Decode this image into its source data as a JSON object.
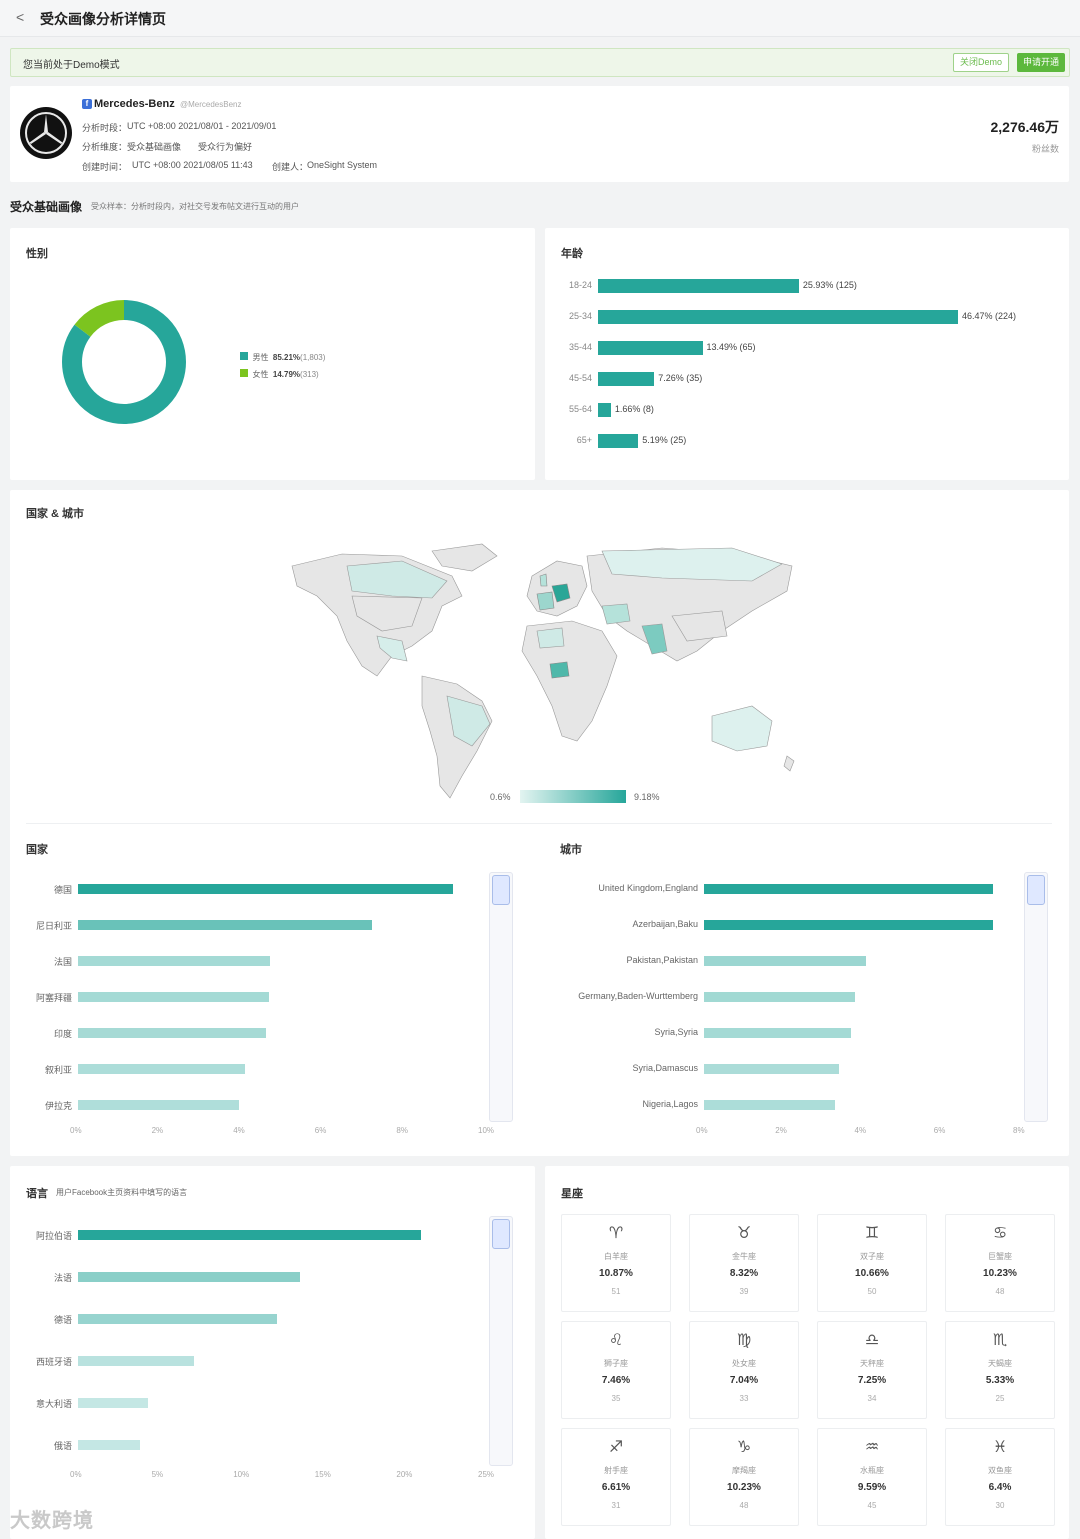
{
  "header": {
    "back_glyph": "<",
    "title": "受众画像分析详情页"
  },
  "demo": {
    "text": "您当前处于Demo模式",
    "close_label": "关闭Demo",
    "apply_label": "申请开通"
  },
  "profile": {
    "platform_icon": "facebook-icon",
    "name": "Mercedes-Benz",
    "handle": "@MercedesBenz",
    "period_label": "分析时段：",
    "period_value": "UTC +08:00 2021/08/01 - 2021/09/01",
    "dimension_label": "分析维度：",
    "dimension_1": "受众基础画像",
    "dimension_2": "受众行为偏好",
    "created_label": "创建时间：",
    "created_value": "UTC +08:00 2021/08/05 11:43",
    "creator_label": "创建人：",
    "creator_value": "OneSight System",
    "fans_value": "2,276.46万",
    "fans_label": "粉丝数"
  },
  "section": {
    "title": "受众基础画像",
    "subtitle": "受众样本：分析时段内，对社交号发布帖文进行互动的用户"
  },
  "gender": {
    "title": "性别",
    "colors": {
      "male": "#26a69a",
      "female": "#7cc41f"
    },
    "chart_data": {
      "type": "pie",
      "series": [
        {
          "name": "男性",
          "percent": 85.21,
          "count": 1803,
          "pct_text": "85.21%",
          "cnt_text": "(1,803)"
        },
        {
          "name": "女性",
          "percent": 14.79,
          "count": 313,
          "pct_text": "14.79%",
          "cnt_text": "(313)"
        }
      ]
    }
  },
  "age": {
    "title": "年龄",
    "bar_color": "#26a69a",
    "chart_data": {
      "type": "bar",
      "categories": [
        "18-24",
        "25-34",
        "35-44",
        "45-54",
        "55-64",
        "65+"
      ],
      "values": [
        25.93,
        46.47,
        13.49,
        7.26,
        1.66,
        5.19
      ],
      "labels": [
        "25.93% (125)",
        "46.47% (224)",
        "13.49% (65)",
        "7.26% (35)",
        "1.66% (8)",
        "5.19% (25)"
      ]
    }
  },
  "map": {
    "title": "国家 & 城市",
    "legend_min": "0.6%",
    "legend_max": "9.18%"
  },
  "countries": {
    "title": "国家",
    "chart_data": {
      "type": "bar",
      "categories": [
        "德国",
        "尼日利亚",
        "法国",
        "阿塞拜疆",
        "印度",
        "叙利亚",
        "伊拉克"
      ],
      "values": [
        9.2,
        7.2,
        4.7,
        4.68,
        4.6,
        4.1,
        3.95
      ],
      "xlim": [
        0,
        10
      ],
      "ticks": [
        "0%",
        "2%",
        "4%",
        "6%",
        "8%",
        "10%"
      ]
    }
  },
  "cities": {
    "title": "城市",
    "chart_data": {
      "type": "bar",
      "categories": [
        "United Kingdom,England",
        "Azerbaijan,Baku",
        "Pakistan,Pakistan",
        "Germany,Baden-Wurttemberg",
        "Syria,Syria",
        "Syria,Damascus",
        "Nigeria,Lagos"
      ],
      "values": [
        7.3,
        7.3,
        4.1,
        3.8,
        3.7,
        3.4,
        3.3
      ],
      "xlim": [
        0,
        8
      ],
      "ticks": [
        "0%",
        "2%",
        "4%",
        "6%",
        "8%"
      ]
    }
  },
  "language": {
    "title": "语言",
    "subtitle": "用户Facebook主页资料中填写的语言",
    "chart_data": {
      "type": "bar",
      "categories": [
        "阿拉伯语",
        "法语",
        "德语",
        "西班牙语",
        "意大利语",
        "俄语"
      ],
      "values": [
        21,
        13.6,
        12.2,
        7.1,
        4.3,
        3.8
      ],
      "xlim": [
        0,
        25
      ],
      "ticks": [
        "0%",
        "5%",
        "10%",
        "15%",
        "20%",
        "25%"
      ]
    }
  },
  "zodiac": {
    "title": "星座",
    "items": [
      {
        "icon": "♈",
        "name": "白羊座",
        "pct": "10.87%",
        "count": "51"
      },
      {
        "icon": "♉",
        "name": "金牛座",
        "pct": "8.32%",
        "count": "39"
      },
      {
        "icon": "♊",
        "name": "双子座",
        "pct": "10.66%",
        "count": "50"
      },
      {
        "icon": "♋",
        "name": "巨蟹座",
        "pct": "10.23%",
        "count": "48"
      },
      {
        "icon": "♌",
        "name": "狮子座",
        "pct": "7.46%",
        "count": "35"
      },
      {
        "icon": "♍",
        "name": "处女座",
        "pct": "7.04%",
        "count": "33"
      },
      {
        "icon": "♎",
        "name": "天秤座",
        "pct": "7.25%",
        "count": "34"
      },
      {
        "icon": "♏",
        "name": "天蝎座",
        "pct": "5.33%",
        "count": "25"
      },
      {
        "icon": "♐",
        "name": "射手座",
        "pct": "6.61%",
        "count": "31"
      },
      {
        "icon": "♑",
        "name": "摩羯座",
        "pct": "10.23%",
        "count": "48"
      },
      {
        "icon": "♒",
        "name": "水瓶座",
        "pct": "9.59%",
        "count": "45"
      },
      {
        "icon": "♓",
        "name": "双鱼座",
        "pct": "6.4%",
        "count": "30"
      }
    ]
  },
  "watermark": "大数跨境"
}
